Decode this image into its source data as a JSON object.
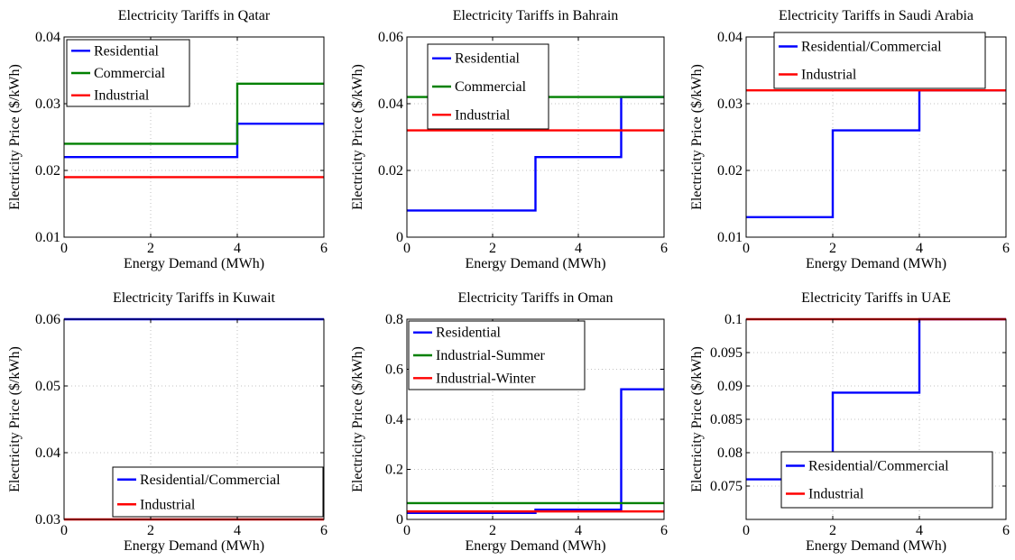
{
  "colors": {
    "Residential": "#0000ff",
    "Commercial": "#008000",
    "Industrial": "#ff0000",
    "Residential/Commercial": "#0000ff",
    "Industrial-Summer": "#008000",
    "Industrial-Winter": "#ff0000"
  },
  "chart_data": [
    {
      "type": "line",
      "step": true,
      "title": "Electricity Tariffs in Qatar",
      "xlabel": "Energy Demand (MWh)",
      "ylabel": "Electricity Price ($/kWh)",
      "xlim": [
        0,
        6
      ],
      "ylim": [
        0.01,
        0.04
      ],
      "xticks": [
        0,
        2,
        4,
        6
      ],
      "xtick_labels": [
        "0",
        "2",
        "4",
        "6"
      ],
      "yticks": [
        0.01,
        0.02,
        0.03,
        0.04
      ],
      "ytick_labels": [
        "0.01",
        "0.02",
        "0.03",
        "0.04"
      ],
      "grid": true,
      "legend": "top-left",
      "series": [
        {
          "name": "Residential",
          "x": [
            0,
            4,
            4,
            6
          ],
          "y": [
            0.022,
            0.022,
            0.027,
            0.027
          ]
        },
        {
          "name": "Commercial",
          "x": [
            0,
            4,
            4,
            6
          ],
          "y": [
            0.024,
            0.024,
            0.033,
            0.033
          ]
        },
        {
          "name": "Industrial",
          "x": [
            0,
            6
          ],
          "y": [
            0.019,
            0.019
          ]
        }
      ]
    },
    {
      "type": "line",
      "step": true,
      "title": "Electricity Tariffs in Bahrain",
      "xlabel": "Energy Demand (MWh)",
      "ylabel": "Electricity Price ($/kWh)",
      "xlim": [
        0,
        6
      ],
      "ylim": [
        0,
        0.06
      ],
      "xticks": [
        0,
        2,
        4,
        6
      ],
      "xtick_labels": [
        "0",
        "2",
        "4",
        "6"
      ],
      "yticks": [
        0,
        0.02,
        0.04,
        0.06
      ],
      "ytick_labels": [
        "0",
        "0.02",
        "0.04",
        "0.06"
      ],
      "grid": true,
      "legend": "top-left",
      "series": [
        {
          "name": "Residential",
          "x": [
            0,
            3,
            3,
            5,
            5,
            6
          ],
          "y": [
            0.008,
            0.008,
            0.024,
            0.024,
            0.042,
            0.042
          ]
        },
        {
          "name": "Commercial",
          "x": [
            0,
            6
          ],
          "y": [
            0.042,
            0.042
          ]
        },
        {
          "name": "Industrial",
          "x": [
            0,
            6
          ],
          "y": [
            0.032,
            0.032
          ]
        }
      ]
    },
    {
      "type": "line",
      "step": true,
      "title": "Electricity Tariffs in Saudi Arabia",
      "xlabel": "Energy Demand (MWh)",
      "ylabel": "Electricity Price ($/kWh)",
      "xlim": [
        0,
        6
      ],
      "ylim": [
        0.01,
        0.04
      ],
      "xticks": [
        0,
        2,
        4,
        6
      ],
      "xtick_labels": [
        "0",
        "2",
        "4",
        "6"
      ],
      "yticks": [
        0.01,
        0.02,
        0.03,
        0.04
      ],
      "ytick_labels": [
        "0.01",
        "0.02",
        "0.03",
        "0.04"
      ],
      "grid": true,
      "legend": "top-right",
      "series": [
        {
          "name": "Residential/Commercial",
          "x": [
            0,
            2,
            2,
            4,
            4,
            6
          ],
          "y": [
            0.013,
            0.013,
            0.026,
            0.026,
            0.032,
            0.032
          ]
        },
        {
          "name": "Industrial",
          "x": [
            0,
            6
          ],
          "y": [
            0.032,
            0.032
          ]
        }
      ]
    },
    {
      "type": "line",
      "step": true,
      "title": "Electricity Tariffs in Kuwait",
      "xlabel": "Energy Demand (MWh)",
      "ylabel": "Electricity Price ($/kWh)",
      "xlim": [
        0,
        6
      ],
      "ylim": [
        0.03,
        0.06
      ],
      "xticks": [
        0,
        2,
        4,
        6
      ],
      "xtick_labels": [
        "0",
        "2",
        "4",
        "6"
      ],
      "yticks": [
        0.03,
        0.04,
        0.05,
        0.06
      ],
      "ytick_labels": [
        "0.03",
        "0.04",
        "0.05",
        "0.06"
      ],
      "grid": true,
      "legend": "bottom-right",
      "series": [
        {
          "name": "Residential/Commercial",
          "x": [
            0,
            6
          ],
          "y": [
            0.06,
            0.06
          ]
        },
        {
          "name": "Industrial",
          "x": [
            0,
            6
          ],
          "y": [
            0.03,
            0.03
          ]
        }
      ]
    },
    {
      "type": "line",
      "step": true,
      "title": "Electricity Tariffs in Oman",
      "xlabel": "Energy Demand (MWh)",
      "ylabel": "Electricity Price ($/kWh)",
      "xlim": [
        0,
        6
      ],
      "ylim": [
        0,
        0.8
      ],
      "xticks": [
        0,
        2,
        4,
        6
      ],
      "xtick_labels": [
        "0",
        "2",
        "4",
        "6"
      ],
      "yticks": [
        0,
        0.2,
        0.4,
        0.6,
        0.8
      ],
      "ytick_labels": [
        "0",
        "0.2",
        "0.4",
        "0.6",
        "0.8"
      ],
      "grid": true,
      "legend": "top-left",
      "series": [
        {
          "name": "Residential",
          "x": [
            0,
            3,
            3,
            5,
            5,
            6
          ],
          "y": [
            0.026,
            0.026,
            0.039,
            0.039,
            0.52,
            0.52
          ]
        },
        {
          "name": "Industrial-Summer",
          "x": [
            0,
            6
          ],
          "y": [
            0.065,
            0.065
          ]
        },
        {
          "name": "Industrial-Winter",
          "x": [
            0,
            6
          ],
          "y": [
            0.032,
            0.032
          ]
        }
      ]
    },
    {
      "type": "line",
      "step": true,
      "title": "Electricity Tariffs in UAE",
      "xlabel": "Energy Demand (MWh)",
      "ylabel": "Electricity Price ($/kWh)",
      "xlim": [
        0,
        6
      ],
      "ylim": [
        0.07,
        0.1
      ],
      "xticks": [
        0,
        2,
        4,
        6
      ],
      "xtick_labels": [
        "0",
        "2",
        "4",
        "6"
      ],
      "yticks": [
        0.075,
        0.08,
        0.085,
        0.09,
        0.095,
        0.1
      ],
      "ytick_labels": [
        "0.075",
        "0.08",
        "0.085",
        "0.09",
        "0.095",
        "0.1"
      ],
      "grid": true,
      "legend": "bottom-right",
      "series": [
        {
          "name": "Residential/Commercial",
          "x": [
            0,
            2,
            2,
            4,
            4,
            6
          ],
          "y": [
            0.076,
            0.076,
            0.089,
            0.089,
            0.1,
            0.1
          ]
        },
        {
          "name": "Industrial",
          "x": [
            0,
            6
          ],
          "y": [
            0.1,
            0.1
          ]
        }
      ]
    }
  ]
}
